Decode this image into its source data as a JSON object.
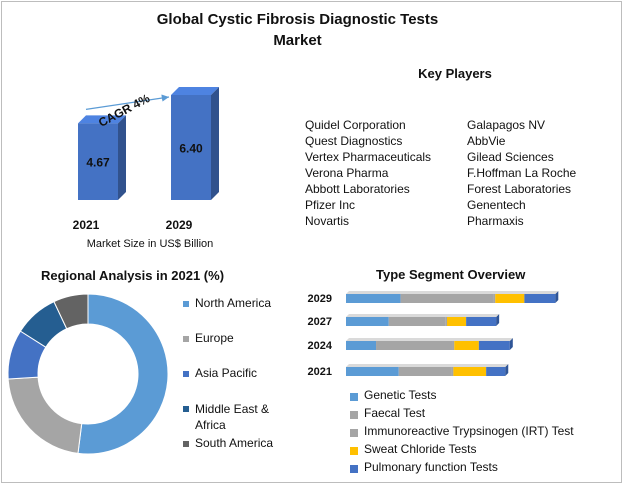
{
  "title_line1": "Global Cystic Fibrosis Diagnostic Tests",
  "title_line2": "Market",
  "key_players": {
    "heading": "Key Players",
    "left": [
      "Quidel Corporation",
      "Quest Diagnostics",
      "Vertex Pharmaceuticals",
      "Verona Pharma",
      "Abbott Laboratories",
      "Pfizer Inc",
      "Novartis"
    ],
    "right": [
      "Galapagos NV",
      "AbbVie",
      "Gilead Sciences",
      "F.Hoffman La Roche",
      "Forest Laboratories",
      "Genentech",
      "Pharmaxis"
    ]
  },
  "chart_data": [
    {
      "type": "bar",
      "categories": [
        "2021",
        "2029"
      ],
      "values": [
        4.67,
        6.4
      ],
      "value_labels": [
        "4.67",
        "6.40"
      ],
      "xlabel": "Market Size in US$ Billion",
      "annotation": "CAGR 4%",
      "color": "#4472C4"
    },
    {
      "type": "pie",
      "donut": true,
      "title": "Regional Analysis in 2021 (%)",
      "legend_position": "right",
      "labels": [
        "North America",
        "Europe",
        "Asia Pacific",
        "Middle East & Africa",
        "South America"
      ],
      "values": [
        52,
        22,
        10,
        9,
        7
      ],
      "colors": [
        "#5B9BD5",
        "#A5A5A5",
        "#4472C4",
        "#255E91",
        "#636363"
      ]
    },
    {
      "type": "bar",
      "orientation": "horizontal",
      "stacked": true,
      "title": "Type Segment Overview",
      "legend_position": "bottom",
      "categories": [
        "2029",
        "2027",
        "2024",
        "2021"
      ],
      "series": [
        {
          "name": "Genetic Tests",
          "color": "#5B9BD5",
          "values": [
            3.0,
            2.35,
            1.65,
            2.9
          ]
        },
        {
          "name": "Faecal Test",
          "color": "#A5A5A5",
          "values": [
            5.1,
            3.1,
            4.2,
            2.9
          ]
        },
        {
          "name": "Immunoreactive Trypsinogen (IRT) Test",
          "color": "#A5A5A5",
          "values": [
            0.1,
            0.1,
            0.1,
            0.1
          ]
        },
        {
          "name": "Sweat Chloride Tests",
          "color": "#FFC000",
          "values": [
            1.6,
            1.05,
            1.35,
            1.8
          ]
        },
        {
          "name": "Pulmonary function Tests",
          "color": "#4472C4",
          "values": [
            1.7,
            1.65,
            1.7,
            1.05
          ]
        }
      ]
    }
  ]
}
